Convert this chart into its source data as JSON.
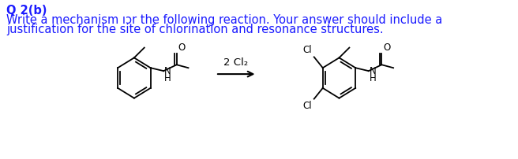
{
  "title": "Q 2(b)",
  "line1": "Write a mechanism ıɔr the following reaction. Your answer should include a",
  "line2": "justification for the site of chlorination and resonance structures.",
  "reagent": "2 Cl₂",
  "bg_color": "#ffffff",
  "text_color": "#1a1aff",
  "struct_color": "#000000",
  "title_fontsize": 10.5,
  "body_fontsize": 10.5
}
